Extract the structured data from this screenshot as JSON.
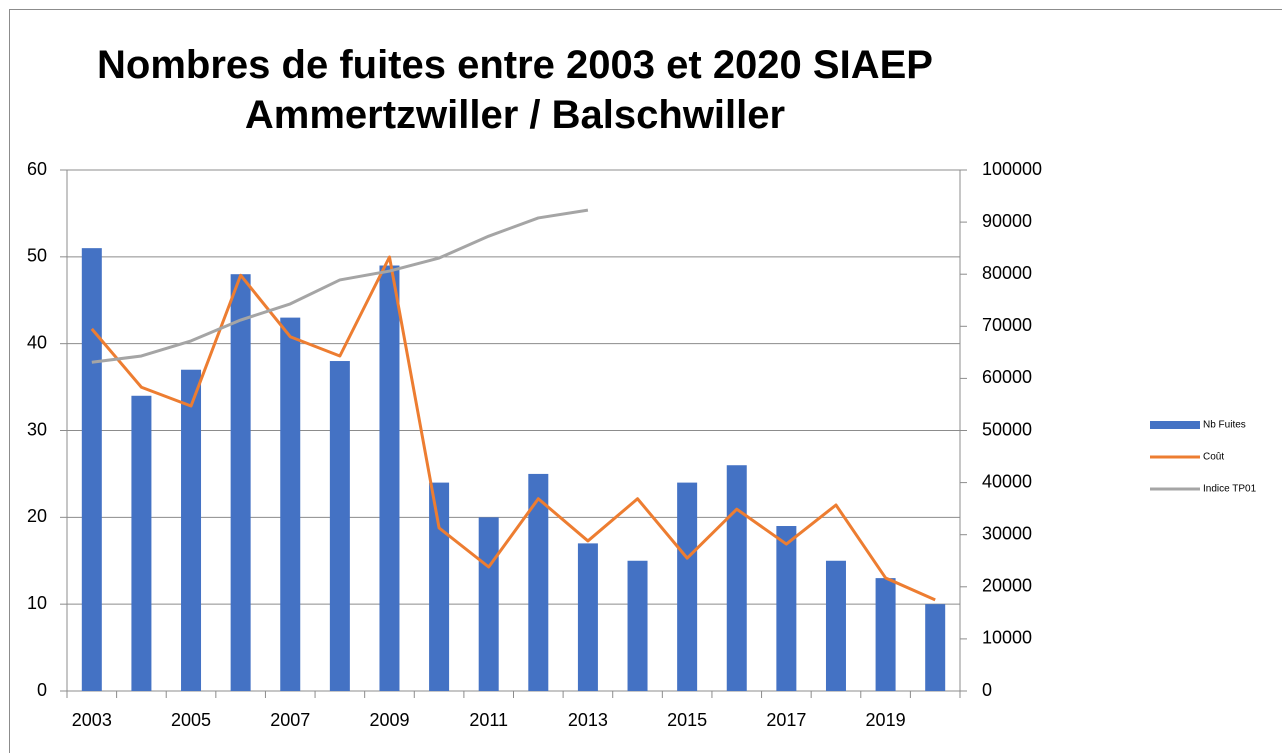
{
  "chart_data": {
    "type": "bar",
    "title": "Nombres de fuites entre 2003 et 2020 SIAEP\nAmmertzwiller / Balschwiller",
    "categories": [
      "2003",
      null,
      "2005",
      null,
      "2007",
      null,
      "2009",
      null,
      "2011",
      null,
      "2013",
      null,
      "2015",
      null,
      "2017",
      null,
      "2019",
      null
    ],
    "series": [
      {
        "name": "Nb Fuites",
        "type": "bar",
        "color": "#4472c4",
        "axis": "y",
        "values": [
          51,
          34,
          37,
          48,
          43,
          38,
          49,
          24,
          20,
          25,
          17,
          15,
          24,
          26,
          19,
          15,
          13,
          10
        ]
      },
      {
        "name": "Coût",
        "type": "line",
        "color": "#ed7d31",
        "axis": "y2",
        "values": [
          69500,
          58300,
          54700,
          79800,
          68000,
          64300,
          83300,
          31300,
          23800,
          36900,
          28800,
          36900,
          25500,
          34900,
          28200,
          35700,
          21700,
          17500
        ]
      },
      {
        "name": "Indice TP01",
        "type": "line",
        "color": "#a5a5a5",
        "axis": "y2",
        "values": [
          63100,
          64300,
          67200,
          71200,
          74300,
          78900,
          80600,
          83100,
          87300,
          90800,
          92300,
          null,
          null,
          null,
          null,
          null,
          null,
          null
        ]
      }
    ],
    "ylim": [
      0,
      60
    ],
    "yticks": [
      0,
      10,
      20,
      30,
      40,
      50,
      60
    ],
    "y2lim": [
      0,
      100000
    ],
    "y2ticks": [
      0,
      10000,
      20000,
      30000,
      40000,
      50000,
      60000,
      70000,
      80000,
      90000,
      100000
    ],
    "grid": true,
    "legend": "right"
  }
}
